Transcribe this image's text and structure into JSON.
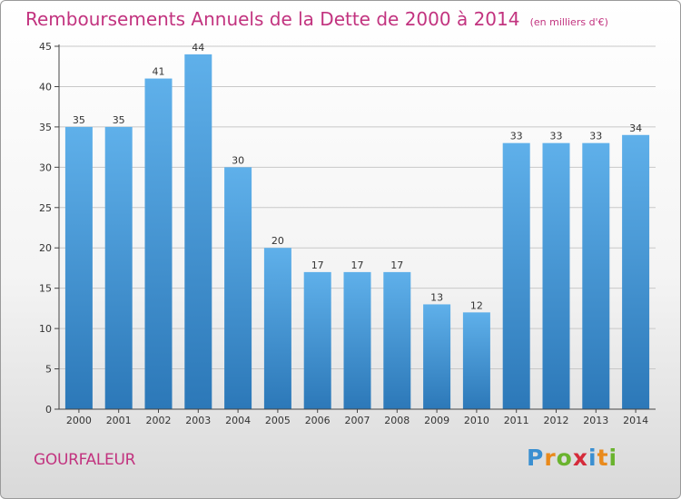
{
  "title": "Remboursements Annuels de la Dette de 2000 à 2014",
  "unit": "(en milliers d'€)",
  "commune": "GOURFALEUR",
  "logo": {
    "letters": [
      "P",
      "r",
      "o",
      "x",
      "i",
      "t",
      "i"
    ],
    "colors": [
      "#3a8fd1",
      "#e98a1c",
      "#6ab32e",
      "#d52b3a",
      "#3a8fd1",
      "#e98a1c",
      "#6ab32e"
    ]
  },
  "colors": {
    "title": "#c2337f",
    "bar_top": "#5fb0ea",
    "bar_bottom": "#2c78b8",
    "axis": "#444444",
    "grid": "#c8c8c8"
  },
  "chart_data": {
    "type": "bar",
    "title": "Remboursements Annuels de la Dette de 2000 à 2014",
    "categories": [
      "2000",
      "2001",
      "2002",
      "2003",
      "2004",
      "2005",
      "2006",
      "2007",
      "2008",
      "2009",
      "2010",
      "2011",
      "2012",
      "2013",
      "2014"
    ],
    "values": [
      35,
      35,
      41,
      44,
      30,
      20,
      17,
      17,
      17,
      13,
      12,
      33,
      33,
      33,
      34
    ],
    "yticks": [
      0,
      5,
      10,
      15,
      20,
      25,
      30,
      35,
      40,
      45
    ],
    "ylim": [
      0,
      45
    ],
    "grid": "horizontal",
    "legend": "none"
  }
}
